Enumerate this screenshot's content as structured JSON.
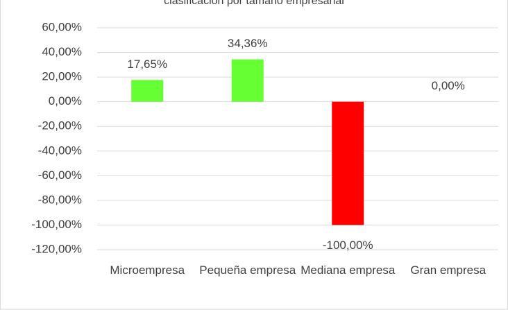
{
  "chart_data": {
    "type": "bar",
    "title": "clasificación por tamaño empresarial",
    "categories": [
      "Microempresa",
      "Pequeña empresa",
      "Mediana empresa",
      "Gran empresa"
    ],
    "values": [
      17.65,
      34.36,
      -100,
      0
    ],
    "value_labels": [
      "17,65%",
      "34,36%",
      "-100,00%",
      "0,00%"
    ],
    "colors": [
      "#66ff33",
      "#66ff33",
      "#ff0000",
      "#66ff33"
    ],
    "ylim": [
      -120,
      60
    ],
    "yticks": [
      {
        "value": 60,
        "label": "60,00%"
      },
      {
        "value": 40,
        "label": "40,00%"
      },
      {
        "value": 20,
        "label": "20,00%"
      },
      {
        "value": 0,
        "label": "0,00%"
      },
      {
        "value": -20,
        "label": "-20,00%"
      },
      {
        "value": -40,
        "label": "-40,00%"
      },
      {
        "value": -60,
        "label": "-60,00%"
      },
      {
        "value": -80,
        "label": "-80,00%"
      },
      {
        "value": -100,
        "label": "-100,00%"
      },
      {
        "value": -120,
        "label": "-120,00%"
      }
    ],
    "grid": true
  }
}
